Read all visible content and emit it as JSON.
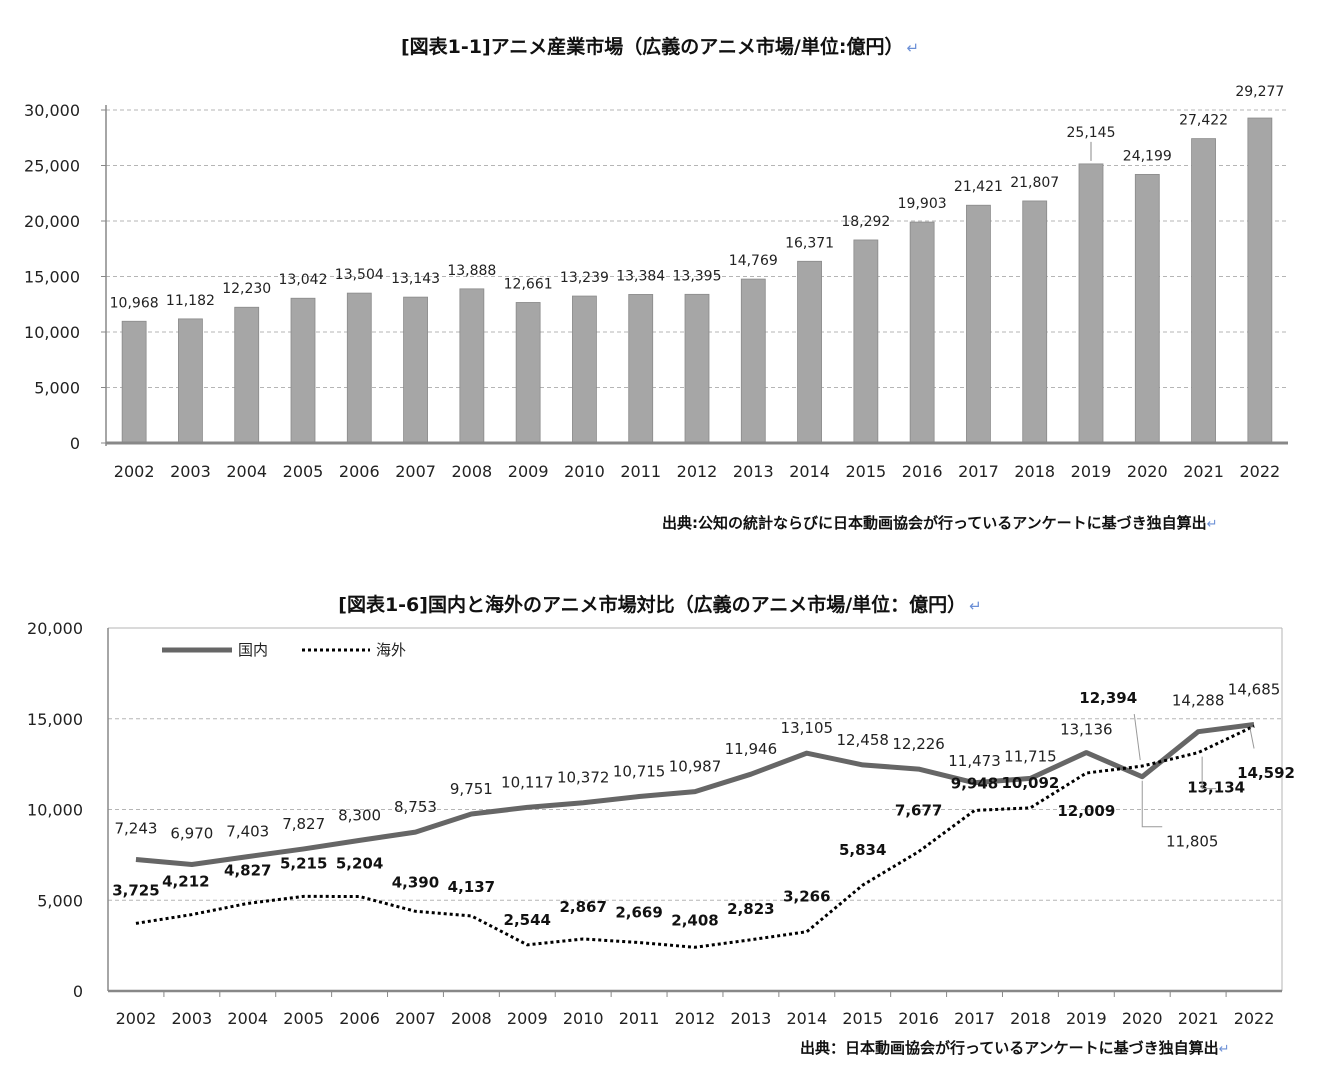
{
  "chart_data": [
    {
      "type": "bar",
      "title": "[図表1-1]アニメ産業市場（広義のアニメ市場/単位:億円）",
      "source": "出典:公知の統計ならびに日本動画協会が行っているアンケートに基づき独自算出",
      "categories": [
        "2002",
        "2003",
        "2004",
        "2005",
        "2006",
        "2007",
        "2008",
        "2009",
        "2010",
        "2011",
        "2012",
        "2013",
        "2014",
        "2015",
        "2016",
        "2017",
        "2018",
        "2019",
        "2020",
        "2021",
        "2022"
      ],
      "values": [
        10968,
        11182,
        12230,
        13042,
        13504,
        13143,
        13888,
        12661,
        13239,
        13384,
        13395,
        14769,
        16371,
        18292,
        19903,
        21421,
        21807,
        25145,
        24199,
        27422,
        29277
      ],
      "value_labels": [
        "10,968",
        "11,182",
        "12,230",
        "13,042",
        "13,504",
        "13,143",
        "13,888",
        "12,661",
        "13,239",
        "13,384",
        "13,395",
        "14,769",
        "16,371",
        "18,292",
        "19,903",
        "21,421",
        "21,807",
        "25,145",
        "24,199",
        "27,422",
        "29,277"
      ],
      "yticks": [
        "0",
        "5,000",
        "10,000",
        "15,000",
        "20,000",
        "25,000",
        "30,000"
      ],
      "ylim": [
        0,
        30000
      ],
      "grid": true,
      "bar_color": "#a6a6a6"
    },
    {
      "type": "line",
      "title": "[図表1-6]国内と海外のアニメ市場対比（広義のアニメ市場/単位：億円）",
      "source": "出典：日本動画協会が行っているアンケートに基づき独自算出",
      "categories": [
        "2002",
        "2003",
        "2004",
        "2005",
        "2006",
        "2007",
        "2008",
        "2009",
        "2010",
        "2011",
        "2012",
        "2013",
        "2014",
        "2015",
        "2016",
        "2017",
        "2018",
        "2019",
        "2020",
        "2021",
        "2022"
      ],
      "series": [
        {
          "name": "国内",
          "values": [
            7243,
            6970,
            7403,
            7827,
            8300,
            8753,
            9751,
            10117,
            10372,
            10715,
            10987,
            11946,
            13105,
            12458,
            12226,
            11473,
            11715,
            13136,
            11805,
            14288,
            14685
          ],
          "labels": [
            "7,243",
            "6,970",
            "7,403",
            "7,827",
            "8,300",
            "8,753",
            "9,751",
            "10,117",
            "10,372",
            "10,715",
            "10,987",
            "11,946",
            "13,105",
            "12,458",
            "12,226",
            "11,473",
            "11,715",
            "13,136",
            "11,805",
            "14,288",
            "14,685"
          ],
          "color": "#666666",
          "style": "solid"
        },
        {
          "name": "海外",
          "values": [
            3725,
            4212,
            4827,
            5215,
            5204,
            4390,
            4137,
            2544,
            2867,
            2669,
            2408,
            2823,
            3266,
            5834,
            7677,
            9948,
            10092,
            12009,
            12394,
            13134,
            14592
          ],
          "labels": [
            "3,725",
            "4,212",
            "4,827",
            "5,215",
            "5,204",
            "4,390",
            "4,137",
            "2,544",
            "2,867",
            "2,669",
            "2,408",
            "2,823",
            "3,266",
            "5,834",
            "7,677",
            "9,948",
            "10,092",
            "12,009",
            "12,394",
            "13,134",
            "14,592"
          ],
          "color": "#000000",
          "style": "dotted"
        }
      ],
      "yticks": [
        "0",
        "5,000",
        "10,000",
        "15,000",
        "20,000"
      ],
      "ylim": [
        0,
        20000
      ],
      "grid": true,
      "legend": "top-left"
    }
  ]
}
